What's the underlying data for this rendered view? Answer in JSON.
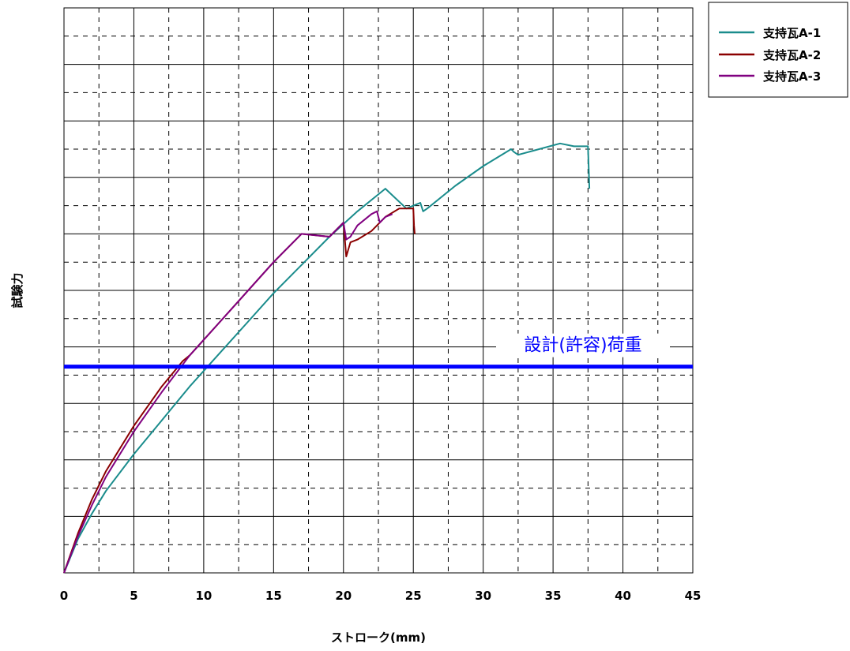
{
  "chart_data": {
    "type": "line",
    "title": "",
    "xlabel": "ストローク(mm)",
    "ylabel": "試験力",
    "xlim": [
      0,
      45
    ],
    "ylim": [
      0,
      20
    ],
    "x_ticks": [
      0,
      5,
      10,
      15,
      20,
      25,
      30,
      35,
      40,
      45
    ],
    "x_tick_labels": [
      "0",
      "5",
      "10",
      "15",
      "20",
      "25",
      "30",
      "35",
      "40",
      "45"
    ],
    "y_tick_labels_shown": false,
    "grid": true,
    "legend_position": "top-right outside plot",
    "series": [
      {
        "name": "支持瓦A-1",
        "color": "#1a8c8c",
        "x": [
          0,
          1,
          2,
          3,
          5,
          7,
          9,
          11,
          13,
          15,
          17,
          19,
          21,
          23,
          24.5,
          25.5,
          25.7,
          26,
          28,
          30,
          32,
          32.2,
          32.5,
          34,
          35.5,
          36.5,
          37.5,
          37.6
        ],
        "y": [
          0,
          1.2,
          2.1,
          2.9,
          4.2,
          5.4,
          6.6,
          7.7,
          8.8,
          9.9,
          10.9,
          11.9,
          12.8,
          13.6,
          12.9,
          13.1,
          12.8,
          12.9,
          13.7,
          14.4,
          15.0,
          14.9,
          14.8,
          15.0,
          15.2,
          15.1,
          15.1,
          13.6
        ]
      },
      {
        "name": "支持瓦A-2",
        "color": "#8b0000",
        "x": [
          0,
          1,
          2,
          3,
          5,
          7,
          8.5,
          9,
          11,
          13,
          15,
          17,
          19,
          20,
          20.2,
          20.5,
          21,
          22,
          23,
          24,
          25,
          25.05,
          25.1
        ],
        "y": [
          0,
          1.4,
          2.6,
          3.6,
          5.2,
          6.6,
          7.5,
          7.7,
          8.8,
          9.9,
          11.0,
          12.0,
          11.9,
          12.4,
          11.2,
          11.7,
          11.8,
          12.1,
          12.6,
          12.9,
          12.9,
          12.3,
          12.0
        ]
      },
      {
        "name": "支持瓦A-3",
        "color": "#800080",
        "x": [
          0,
          1,
          2,
          3,
          5,
          7,
          9,
          11,
          13,
          15,
          17,
          19,
          20,
          20.2,
          20.5,
          21,
          22,
          22.4,
          22.6,
          23,
          23.5
        ],
        "y": [
          0,
          1.3,
          2.4,
          3.4,
          5.0,
          6.4,
          7.7,
          8.8,
          9.9,
          11.0,
          12.0,
          11.9,
          12.4,
          11.8,
          11.9,
          12.3,
          12.7,
          12.8,
          12.4,
          12.6,
          12.7
        ]
      }
    ],
    "annotations": [
      {
        "type": "hline",
        "y": 7.3,
        "color": "#0000ff",
        "label": "設計(許容)荷重"
      }
    ]
  }
}
